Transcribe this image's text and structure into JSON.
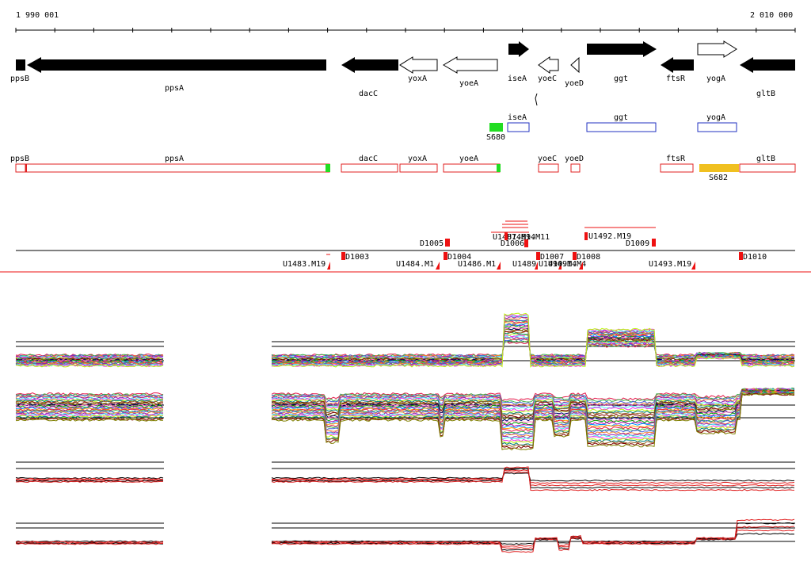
{
  "coords": {
    "start": "1 990 001",
    "end": "2 010 000"
  },
  "genes": [
    {
      "name": "ppsB",
      "dir": "-",
      "filled": true
    },
    {
      "name": "ppsA",
      "dir": "-",
      "filled": true
    },
    {
      "name": "dacC",
      "dir": "-",
      "filled": true
    },
    {
      "name": "yoxA",
      "dir": "-",
      "filled": false
    },
    {
      "name": "yoeA",
      "dir": "-",
      "filled": false
    },
    {
      "name": "iseA",
      "dir": "+",
      "filled": true
    },
    {
      "name": "yoeC",
      "dir": "-",
      "filled": false
    },
    {
      "name": "yoeD",
      "dir": "-",
      "filled": false
    },
    {
      "name": "ggt",
      "dir": "+",
      "filled": true
    },
    {
      "name": "ftsR",
      "dir": "-",
      "filled": true
    },
    {
      "name": "yogA",
      "dir": "+",
      "filled": false
    },
    {
      "name": "gltB",
      "dir": "-",
      "filled": true
    }
  ],
  "plus_features": [
    {
      "name": "S680",
      "kind": "green"
    },
    {
      "name": "iseA",
      "kind": "blue"
    },
    {
      "name": "ggt",
      "kind": "blue"
    },
    {
      "name": "yogA",
      "kind": "blue"
    }
  ],
  "minus_features": [
    {
      "name": "ppsB"
    },
    {
      "name": "ppsA"
    },
    {
      "name": "dacC"
    },
    {
      "name": "yoxA"
    },
    {
      "name": "yoeA"
    },
    {
      "name": "yoeC"
    },
    {
      "name": "yoeD"
    },
    {
      "name": "ftsR"
    },
    {
      "name": "S682",
      "kind": "orange"
    },
    {
      "name": "gltB"
    }
  ],
  "segments_upper": [
    "D1005",
    "U1487.M14",
    "D1006",
    "U1492.M19",
    "D1009"
  ],
  "segments_lower": [
    "U1483.M19",
    "D1003",
    "U1484.M1",
    "D1004",
    "U1486.M1",
    "U1489",
    "D1007",
    "U1490.M4",
    "D1008",
    "U1493.M19",
    "D1010"
  ],
  "colors": {
    "gene_fill": "#000000",
    "feature_red": "#e02020",
    "feature_blue": "#2030c0",
    "feature_green": "#22dd22",
    "feature_orange": "#f0c020",
    "segment_red": "#ee1111"
  }
}
